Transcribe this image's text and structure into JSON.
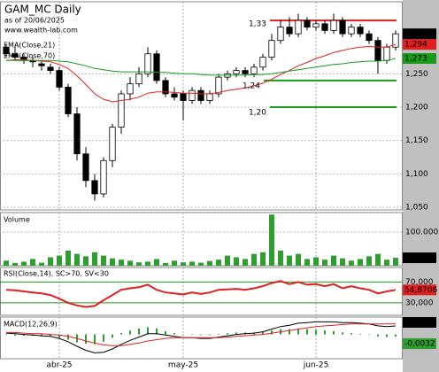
{
  "header": {
    "title": "GAM_MC Daily",
    "subtitle": "as of 20/06/2025",
    "site": "www.wealth-lab.com"
  },
  "x_axis": {
    "xlim": [
      -0.5,
      44.5
    ],
    "xticks": [
      {
        "value": 6,
        "label": "abr-25"
      },
      {
        "value": 20,
        "label": "may-25"
      },
      {
        "value": 35,
        "label": "jun-25"
      }
    ]
  },
  "chart_data": [
    {
      "type": "candlestick",
      "ylim": [
        1.046,
        1.358
      ],
      "yticks": [
        {
          "value": 1.25,
          "label": "1,250"
        },
        {
          "value": 1.2,
          "label": "1,200"
        },
        {
          "value": 1.15,
          "label": "1,150"
        },
        {
          "value": 1.1,
          "label": "1,100"
        },
        {
          "value": 1.05,
          "label": "1,050"
        }
      ],
      "open": [
        1.29,
        1.28,
        1.275,
        1.27,
        1.265,
        1.26,
        1.255,
        1.23,
        1.19,
        1.13,
        1.09,
        1.07,
        1.12,
        1.17,
        1.22,
        1.235,
        1.25,
        1.28,
        1.24,
        1.22,
        1.22,
        1.21,
        1.225,
        1.21,
        1.22,
        1.245,
        1.25,
        1.255,
        1.25,
        1.26,
        1.275,
        1.3,
        1.32,
        1.31,
        1.33,
        1.32,
        1.325,
        1.315,
        1.33,
        1.31,
        1.32,
        1.31,
        1.3,
        1.27,
        1.29
      ],
      "high": [
        1.295,
        1.29,
        1.28,
        1.275,
        1.27,
        1.265,
        1.26,
        1.235,
        1.2,
        1.14,
        1.1,
        1.125,
        1.175,
        1.225,
        1.245,
        1.26,
        1.29,
        1.285,
        1.245,
        1.23,
        1.225,
        1.23,
        1.23,
        1.225,
        1.25,
        1.255,
        1.26,
        1.26,
        1.265,
        1.28,
        1.31,
        1.33,
        1.335,
        1.34,
        1.335,
        1.33,
        1.33,
        1.34,
        1.335,
        1.325,
        1.325,
        1.315,
        1.305,
        1.295,
        1.315
      ],
      "low": [
        1.275,
        1.27,
        1.265,
        1.26,
        1.255,
        1.25,
        1.225,
        1.185,
        1.12,
        1.08,
        1.06,
        1.065,
        1.11,
        1.16,
        1.21,
        1.23,
        1.245,
        1.235,
        1.215,
        1.21,
        1.18,
        1.205,
        1.205,
        1.205,
        1.215,
        1.24,
        1.245,
        1.245,
        1.245,
        1.255,
        1.27,
        1.295,
        1.305,
        1.305,
        1.315,
        1.315,
        1.31,
        1.31,
        1.305,
        1.305,
        1.305,
        1.295,
        1.25,
        1.265,
        1.285
      ],
      "close": [
        1.28,
        1.275,
        1.27,
        1.268,
        1.262,
        1.255,
        1.23,
        1.19,
        1.13,
        1.09,
        1.07,
        1.12,
        1.17,
        1.22,
        1.235,
        1.25,
        1.28,
        1.24,
        1.22,
        1.215,
        1.21,
        1.225,
        1.21,
        1.22,
        1.245,
        1.25,
        1.255,
        1.25,
        1.26,
        1.275,
        1.3,
        1.32,
        1.31,
        1.33,
        1.32,
        1.325,
        1.315,
        1.33,
        1.31,
        1.32,
        1.31,
        1.3,
        1.27,
        1.29,
        1.31
      ],
      "last_label": "1,310",
      "series": [
        {
          "name": "EMA(Close,21)",
          "color": "#e02020",
          "last_label": "1,294",
          "values": [
            1.27,
            1.271,
            1.271,
            1.27,
            1.269,
            1.268,
            1.264,
            1.258,
            1.247,
            1.234,
            1.22,
            1.212,
            1.208,
            1.21,
            1.212,
            1.215,
            1.221,
            1.223,
            1.223,
            1.222,
            1.221,
            1.221,
            1.22,
            1.22,
            1.222,
            1.225,
            1.227,
            1.229,
            1.232,
            1.236,
            1.242,
            1.249,
            1.255,
            1.262,
            1.267,
            1.273,
            1.277,
            1.282,
            1.285,
            1.288,
            1.29,
            1.291,
            1.29,
            1.29,
            1.294
          ]
        },
        {
          "name": "EMA(Close,70)",
          "color": "#1a9a1a",
          "last_label": "1,273",
          "values": [
            1.27,
            1.27,
            1.27,
            1.27,
            1.27,
            1.27,
            1.269,
            1.268,
            1.265,
            1.262,
            1.258,
            1.256,
            1.254,
            1.253,
            1.253,
            1.253,
            1.253,
            1.252,
            1.252,
            1.251,
            1.25,
            1.25,
            1.249,
            1.248,
            1.248,
            1.248,
            1.248,
            1.248,
            1.249,
            1.249,
            1.25,
            1.252,
            1.254,
            1.256,
            1.258,
            1.26,
            1.262,
            1.264,
            1.265,
            1.267,
            1.268,
            1.269,
            1.269,
            1.27,
            1.273
          ]
        }
      ],
      "levels": [
        {
          "value": 1.33,
          "label": "1,33",
          "color": "#e02020"
        },
        {
          "value": 1.24,
          "label": "1,24",
          "color": "#1a9a1a"
        },
        {
          "value": 1.2,
          "label": "1,20",
          "color": "#1a9a1a"
        }
      ]
    },
    {
      "type": "bar",
      "title": "Volume",
      "color": "#2e9e2e",
      "ylim": [
        0,
        158000
      ],
      "yticks": [
        {
          "value": 100000,
          "label": "100.000"
        }
      ],
      "last_label": "23.510",
      "values": [
        15000,
        8000,
        12000,
        20000,
        9000,
        25000,
        30000,
        45000,
        35000,
        28000,
        40000,
        30000,
        22000,
        18000,
        15000,
        10000,
        12000,
        20000,
        8000,
        15000,
        10000,
        12000,
        9000,
        14000,
        18000,
        30000,
        25000,
        20000,
        35000,
        40000,
        152000,
        45000,
        30000,
        35000,
        20000,
        25000,
        18000,
        30000,
        22000,
        15000,
        20000,
        28000,
        35000,
        18000,
        23510
      ]
    },
    {
      "type": "line",
      "title": "RSI(Close,14), SC>70, SV<30",
      "color": "#e02020",
      "tick_color": "#1a9a1a",
      "ylim": [
        6,
        98
      ],
      "yticks": [
        {
          "value": 70,
          "label": "70,000"
        },
        {
          "value": 30,
          "label": "30,000"
        }
      ],
      "last_label": "54,8706",
      "values": [
        55,
        54,
        52,
        50,
        48,
        45,
        38,
        30,
        25,
        22,
        24,
        35,
        45,
        55,
        58,
        60,
        65,
        55,
        50,
        48,
        46,
        50,
        47,
        50,
        55,
        56,
        57,
        55,
        58,
        62,
        68,
        72,
        66,
        70,
        65,
        66,
        62,
        66,
        58,
        62,
        58,
        55,
        48,
        52,
        54.8706
      ]
    },
    {
      "type": "macd",
      "title": "MACD(12,26,9)",
      "ylim": [
        -0.0368,
        0.0263
      ],
      "series": [
        {
          "color": "#000000",
          "last_label": "0,0129",
          "values": [
            0.002,
            0.001,
            0,
            -0.001,
            -0.002,
            -0.003,
            -0.006,
            -0.011,
            -0.018,
            -0.024,
            -0.028,
            -0.027,
            -0.022,
            -0.015,
            -0.009,
            -0.004,
            0.001,
            0.001,
            -0.001,
            -0.003,
            -0.005,
            -0.005,
            -0.006,
            -0.006,
            -0.004,
            -0.002,
            0,
            0.001,
            0.002,
            0.004,
            0.008,
            0.012,
            0.014,
            0.017,
            0.018,
            0.019,
            0.019,
            0.019,
            0.018,
            0.018,
            0.017,
            0.016,
            0.013,
            0.012,
            0.0129
          ]
        },
        {
          "color": "#e02020",
          "values": [
            0.003,
            0.003,
            0.002,
            0.001,
            0.001,
            0,
            -0.001,
            -0.003,
            -0.006,
            -0.01,
            -0.013,
            -0.016,
            -0.017,
            -0.017,
            -0.015,
            -0.013,
            -0.01,
            -0.008,
            -0.006,
            -0.005,
            -0.005,
            -0.005,
            -0.005,
            -0.005,
            -0.005,
            -0.004,
            -0.003,
            -0.002,
            -0.001,
            0,
            0.002,
            0.004,
            0.006,
            0.008,
            0.01,
            0.012,
            0.013,
            0.014,
            0.015,
            0.016,
            0.016,
            0.016,
            0.016,
            0.016,
            0.0161
          ]
        }
      ],
      "histogram": {
        "color": "#2e9e2e",
        "last_label": "-0,0032",
        "values": [
          -0.001,
          -0.002,
          -0.002,
          -0.002,
          -0.003,
          -0.003,
          -0.005,
          -0.008,
          -0.012,
          -0.014,
          -0.015,
          -0.011,
          -0.005,
          0.002,
          0.006,
          0.009,
          0.011,
          0.009,
          0.005,
          0.002,
          0,
          0,
          -0.001,
          -0.001,
          0.001,
          0.002,
          0.003,
          0.003,
          0.003,
          0.004,
          0.006,
          0.008,
          0.008,
          0.009,
          0.008,
          0.007,
          0.006,
          0.005,
          0.003,
          0.002,
          0.001,
          0,
          -0.003,
          -0.004,
          -0.0032
        ]
      }
    }
  ]
}
